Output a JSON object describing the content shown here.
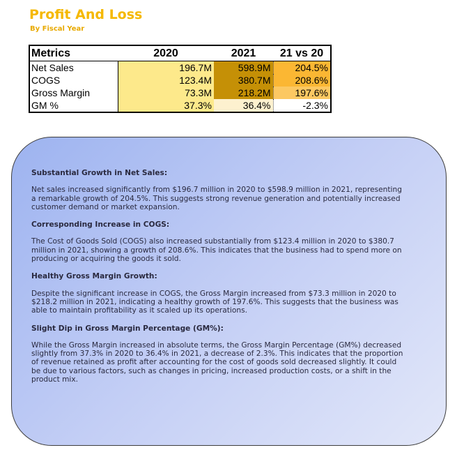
{
  "header": {
    "title": "Profit And Loss",
    "subtitle": "By Fiscal Year"
  },
  "table": {
    "columns": [
      "Metrics",
      "2020",
      "2021",
      "21 vs 20"
    ],
    "rows": [
      {
        "metric": "Net Sales",
        "y2020": "196.7M",
        "y2021": "598.9M",
        "vs": "204.5%"
      },
      {
        "metric": "COGS",
        "y2020": "123.4M",
        "y2021": "380.7M",
        "vs": "208.6%"
      },
      {
        "metric": "Gross Margin",
        "y2020": "73.3M",
        "y2021": "218.2M",
        "vs": "197.6%"
      },
      {
        "metric": "GM %",
        "y2020": "37.3%",
        "y2021": "36.4%",
        "vs": "-2.3%"
      }
    ]
  },
  "colors": {
    "title": "#f5b800",
    "fill_2020": "#fde98b",
    "fill_2021_strong": "#c59006",
    "fill_2021_light": "#fdf1cf",
    "fill_vs_strong": "#fbb733",
    "fill_vs_mid": "#fcc862",
    "panel_start": "#9db3f0",
    "panel_end": "#e2e7f9"
  },
  "insights": [
    {
      "heading": "Substantial Growth in Net Sales:",
      "text": "Net sales increased significantly from $196.7 million in 2020 to $598.9 million in 2021, representing a remarkable growth of 204.5%. This suggests strong revenue generation and potentially increased customer demand or market expansion."
    },
    {
      "heading": "Corresponding Increase in COGS:",
      "text": "The Cost of Goods Sold (COGS) also increased substantially from $123.4 million in 2020 to $380.7 million in 2021, showing a growth of 208.6%. This indicates that the business had to spend more on producing or acquiring the goods it sold."
    },
    {
      "heading": "Healthy Gross Margin Growth:",
      "text": "Despite the significant increase in COGS, the Gross Margin increased from $73.3 million in 2020 to $218.2 million in 2021, indicating a healthy growth of 197.6%. This suggests that the business was able to maintain profitability as it scaled up its operations."
    },
    {
      "heading": "Slight Dip in Gross Margin Percentage (GM%):",
      "text": "While the Gross Margin increased in absolute terms, the Gross Margin Percentage (GM%) decreased slightly from 37.3% in 2020 to 36.4% in 2021, a decrease of 2.3%. This indicates that the proportion of revenue retained as profit after accounting for the cost of goods sold decreased slightly. It could be due to various factors, such as changes in pricing, increased production costs, or a shift in the product mix."
    }
  ]
}
